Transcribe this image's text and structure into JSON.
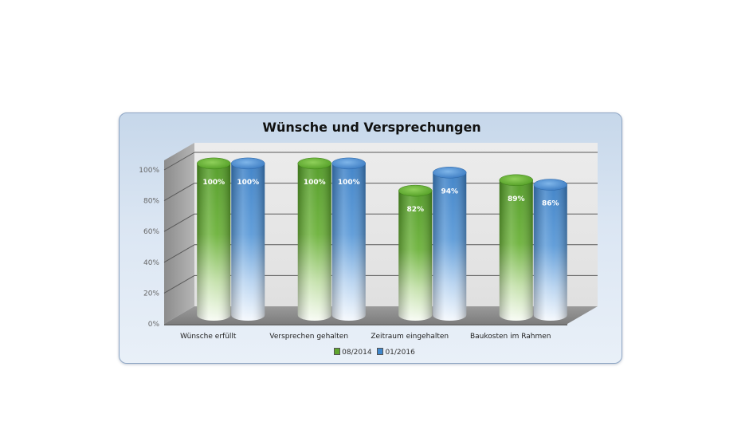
{
  "chart_data": {
    "type": "bar",
    "title": "Wünsche und Versprechungen",
    "categories": [
      "Wünsche erfüllt",
      "Versprechen gehalten",
      "Zeitraum eingehalten",
      "Baukosten im Rahmen"
    ],
    "series": [
      {
        "name": "08/2014",
        "values": [
          100,
          100,
          82,
          89
        ],
        "color": "#5fa52e"
      },
      {
        "name": "01/2016",
        "values": [
          100,
          100,
          94,
          86
        ],
        "color": "#3f87cc"
      }
    ],
    "data_labels": [
      [
        "100%",
        "100%",
        "82%",
        "89%"
      ],
      [
        "100%",
        "100%",
        "94%",
        "86%"
      ]
    ],
    "y_ticks": [
      "0%",
      "20%",
      "40%",
      "60%",
      "80%",
      "100%"
    ],
    "ylim": [
      0,
      100
    ],
    "grid": true,
    "legend": "bottom",
    "style": "3d-cylinder"
  }
}
